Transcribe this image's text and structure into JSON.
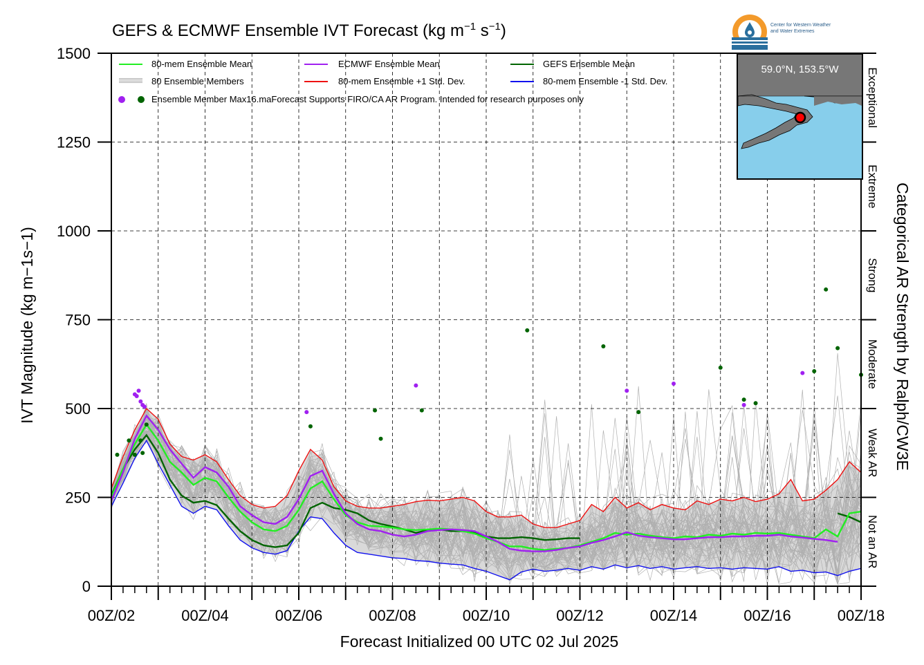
{
  "title": "GEFS & ECMWF Ensemble IVT Forecast (kg m",
  "title_sup1": "−1",
  "title_mid": " s",
  "title_sup2": "−1",
  "title_end": ")",
  "logo": {
    "line1": "Center for Western Weather",
    "line2": "and Water Extremes"
  },
  "inset": {
    "location_label": "59.0°N, 153.5°W",
    "colors": {
      "ocean": "#87ceeb",
      "land": "#777777",
      "marker": "#ff0000"
    }
  },
  "legend": {
    "mean80": "80-mem Ensemble Mean",
    "members": "80 Ensemble Members",
    "ecmwf_mean": "ECMWF Ensemble Mean",
    "plus1": "80-mem Ensemble +1 Std. Dev.",
    "gefs_mean": "GEFS Ensemble Mean",
    "minus1": "80-mem Ensemble -1 Std. Dev.",
    "max_label": "Ensemble Member Max16.maForecast Supports FIRO/CA AR Program. Intended for research purposes only"
  },
  "colors": {
    "mean80": "#22ee22",
    "ecmwf": "#a020f0",
    "gefs": "#006400",
    "plus1": "#ee1111",
    "minus1": "#1111ee",
    "members": "#b0b0b0",
    "spread": "#d9d9d9"
  },
  "chart_data": {
    "type": "line",
    "title": "GEFS & ECMWF Ensemble IVT Forecast (kg m−1 s−1)",
    "xlabel": "Forecast Initialized 00 UTC 02 Jul 2025",
    "ylabel": "IVT Magnitude (kg m−1s−1)",
    "right_label": "Categorical AR Strength by Ralph/CW3E",
    "ylim": [
      0,
      1500
    ],
    "xlim": [
      0,
      384
    ],
    "y_ticks": [
      0,
      250,
      500,
      750,
      1000,
      1250,
      1500
    ],
    "x_ticks": [
      {
        "h": 0,
        "label": "00Z/02"
      },
      {
        "h": 48,
        "label": "00Z/04"
      },
      {
        "h": 96,
        "label": "00Z/06"
      },
      {
        "h": 144,
        "label": "00Z/08"
      },
      {
        "h": 192,
        "label": "00Z/10"
      },
      {
        "h": 240,
        "label": "00Z/12"
      },
      {
        "h": 288,
        "label": "00Z/14"
      },
      {
        "h": 336,
        "label": "00Z/16"
      },
      {
        "h": 384,
        "label": "00Z/18"
      }
    ],
    "categories": [
      {
        "name": "Not an AR",
        "range": [
          0,
          250
        ]
      },
      {
        "name": "Weak AR",
        "range": [
          250,
          500
        ]
      },
      {
        "name": "Moderate",
        "range": [
          500,
          750
        ]
      },
      {
        "name": "Strong",
        "range": [
          750,
          1000
        ]
      },
      {
        "name": "Extreme",
        "range": [
          1000,
          1250
        ]
      },
      {
        "name": "Exceptional",
        "range": [
          1250,
          1500
        ]
      }
    ],
    "grid": true,
    "series": [
      {
        "name": "80-mem Ensemble Mean",
        "key": "mean80",
        "x": [
          0,
          6,
          12,
          18,
          24,
          30,
          36,
          42,
          48,
          54,
          60,
          66,
          72,
          78,
          84,
          90,
          96,
          102,
          108,
          114,
          120,
          126,
          132,
          138,
          144,
          150,
          156,
          162,
          168,
          174,
          180,
          186,
          192,
          198,
          204,
          210,
          216,
          222,
          228,
          234,
          240,
          246,
          252,
          258,
          264,
          270,
          276,
          282,
          288,
          294,
          300,
          306,
          312,
          318,
          324,
          330,
          336,
          342,
          348,
          354,
          360,
          366,
          372,
          378,
          384
        ],
        "y": [
          250,
          330,
          400,
          455,
          410,
          350,
          320,
          285,
          305,
          295,
          250,
          210,
          180,
          160,
          155,
          170,
          215,
          275,
          295,
          245,
          200,
          180,
          170,
          168,
          165,
          160,
          158,
          160,
          162,
          160,
          155,
          148,
          135,
          125,
          112,
          112,
          105,
          102,
          105,
          108,
          115,
          125,
          135,
          150,
          145,
          148,
          142,
          138,
          135,
          140,
          138,
          145,
          142,
          148,
          145,
          150,
          148,
          150,
          145,
          140,
          135,
          160,
          140,
          205,
          210
        ]
      },
      {
        "name": "ECMWF Ensemble Mean",
        "key": "ecmwf",
        "x": [
          0,
          6,
          12,
          18,
          24,
          30,
          36,
          42,
          48,
          54,
          60,
          66,
          72,
          78,
          84,
          90,
          96,
          102,
          108,
          114,
          120,
          126,
          132,
          138,
          144,
          150,
          156,
          162,
          168,
          174,
          180,
          186,
          192,
          198,
          204,
          210,
          216,
          222,
          228,
          234,
          240,
          246,
          252,
          258,
          264,
          270,
          276,
          282,
          288,
          294,
          300,
          306,
          312,
          318,
          324,
          330,
          336,
          342,
          348,
          354,
          360,
          366,
          372
        ],
        "y": [
          240,
          320,
          415,
          480,
          440,
          385,
          345,
          305,
          335,
          320,
          280,
          225,
          200,
          180,
          175,
          195,
          245,
          310,
          325,
          260,
          205,
          175,
          160,
          155,
          145,
          140,
          145,
          155,
          158,
          160,
          158,
          155,
          140,
          125,
          105,
          100,
          98,
          98,
          102,
          108,
          112,
          122,
          130,
          140,
          152,
          142,
          138,
          135,
          132,
          132,
          135,
          138,
          138,
          140,
          140,
          142,
          142,
          145,
          140,
          137,
          133,
          130,
          125
        ]
      },
      {
        "name": "GEFS Ensemble Mean",
        "key": "gefs",
        "x": [
          0,
          6,
          12,
          18,
          24,
          30,
          36,
          42,
          48,
          54,
          60,
          66,
          72,
          78,
          84,
          90,
          96,
          102,
          108,
          114,
          120,
          126,
          132,
          138,
          144,
          150,
          156,
          162,
          168,
          174,
          180,
          186,
          192,
          198,
          204,
          210,
          216,
          222,
          228,
          234,
          240,
          372,
          378,
          384
        ],
        "y": [
          255,
          330,
          385,
          425,
          375,
          300,
          255,
          235,
          240,
          228,
          190,
          155,
          130,
          115,
          110,
          115,
          150,
          220,
          235,
          220,
          215,
          205,
          185,
          175,
          168,
          160,
          150,
          158,
          160,
          155,
          155,
          150,
          140,
          135,
          135,
          138,
          135,
          130,
          132,
          135,
          135,
          205,
          195,
          180
        ]
      },
      {
        "name": "80-mem Ensemble +1 Std. Dev.",
        "key": "plus1",
        "x": [
          0,
          6,
          12,
          18,
          24,
          30,
          36,
          42,
          48,
          54,
          60,
          66,
          72,
          78,
          84,
          90,
          96,
          102,
          108,
          114,
          120,
          126,
          132,
          138,
          144,
          150,
          156,
          162,
          168,
          174,
          180,
          186,
          192,
          198,
          204,
          210,
          216,
          222,
          228,
          234,
          240,
          246,
          252,
          258,
          264,
          270,
          276,
          282,
          288,
          294,
          300,
          306,
          312,
          318,
          324,
          330,
          336,
          342,
          348,
          354,
          360,
          366,
          372,
          378,
          384
        ],
        "y": [
          275,
          365,
          440,
          500,
          470,
          400,
          365,
          355,
          370,
          350,
          300,
          255,
          230,
          220,
          225,
          255,
          325,
          385,
          355,
          280,
          240,
          225,
          220,
          220,
          225,
          230,
          238,
          242,
          240,
          245,
          250,
          240,
          210,
          195,
          195,
          200,
          175,
          165,
          165,
          175,
          185,
          230,
          210,
          250,
          220,
          235,
          215,
          230,
          220,
          215,
          240,
          230,
          245,
          240,
          250,
          238,
          245,
          260,
          300,
          240,
          245,
          270,
          300,
          350,
          320
        ]
      },
      {
        "name": "80-mem Ensemble -1 Std. Dev.",
        "key": "minus1",
        "x": [
          0,
          6,
          12,
          18,
          24,
          30,
          36,
          42,
          48,
          54,
          60,
          66,
          72,
          78,
          84,
          90,
          96,
          102,
          108,
          114,
          120,
          126,
          132,
          138,
          144,
          150,
          156,
          162,
          168,
          174,
          180,
          186,
          192,
          198,
          204,
          210,
          216,
          222,
          228,
          234,
          240,
          246,
          252,
          258,
          264,
          270,
          276,
          282,
          288,
          294,
          300,
          306,
          312,
          318,
          324,
          330,
          336,
          342,
          348,
          354,
          360,
          366,
          372,
          378,
          384
        ],
        "y": [
          225,
          290,
          360,
          410,
          345,
          285,
          225,
          205,
          225,
          215,
          170,
          130,
          108,
          95,
          90,
          100,
          155,
          195,
          190,
          150,
          115,
          95,
          90,
          85,
          80,
          78,
          72,
          70,
          65,
          62,
          60,
          50,
          42,
          30,
          18,
          40,
          48,
          42,
          45,
          50,
          45,
          55,
          48,
          60,
          52,
          58,
          50,
          55,
          48,
          52,
          55,
          50,
          52,
          48,
          52,
          50,
          48,
          55,
          42,
          45,
          38,
          40,
          30,
          42,
          50
        ]
      }
    ],
    "ensemble_max": {
      "ecmwf": [
        [
          12,
          540
        ],
        [
          13,
          535
        ],
        [
          14,
          550
        ],
        [
          15,
          520
        ],
        [
          16,
          510
        ],
        [
          17,
          505
        ],
        [
          100,
          490
        ],
        [
          156,
          565
        ],
        [
          288,
          570
        ],
        [
          264,
          550
        ],
        [
          324,
          510
        ],
        [
          354,
          600
        ]
      ],
      "gefs": [
        [
          3,
          370
        ],
        [
          9,
          410
        ],
        [
          12,
          370
        ],
        [
          15,
          410
        ],
        [
          16,
          375
        ],
        [
          18,
          455
        ],
        [
          102,
          450
        ],
        [
          135,
          495
        ],
        [
          138,
          415
        ],
        [
          159,
          495
        ],
        [
          213,
          720
        ],
        [
          252,
          675
        ],
        [
          270,
          490
        ],
        [
          312,
          615
        ],
        [
          324,
          525
        ],
        [
          330,
          515
        ],
        [
          360,
          605
        ],
        [
          366,
          835
        ],
        [
          372,
          670
        ],
        [
          384,
          595
        ]
      ]
    }
  }
}
